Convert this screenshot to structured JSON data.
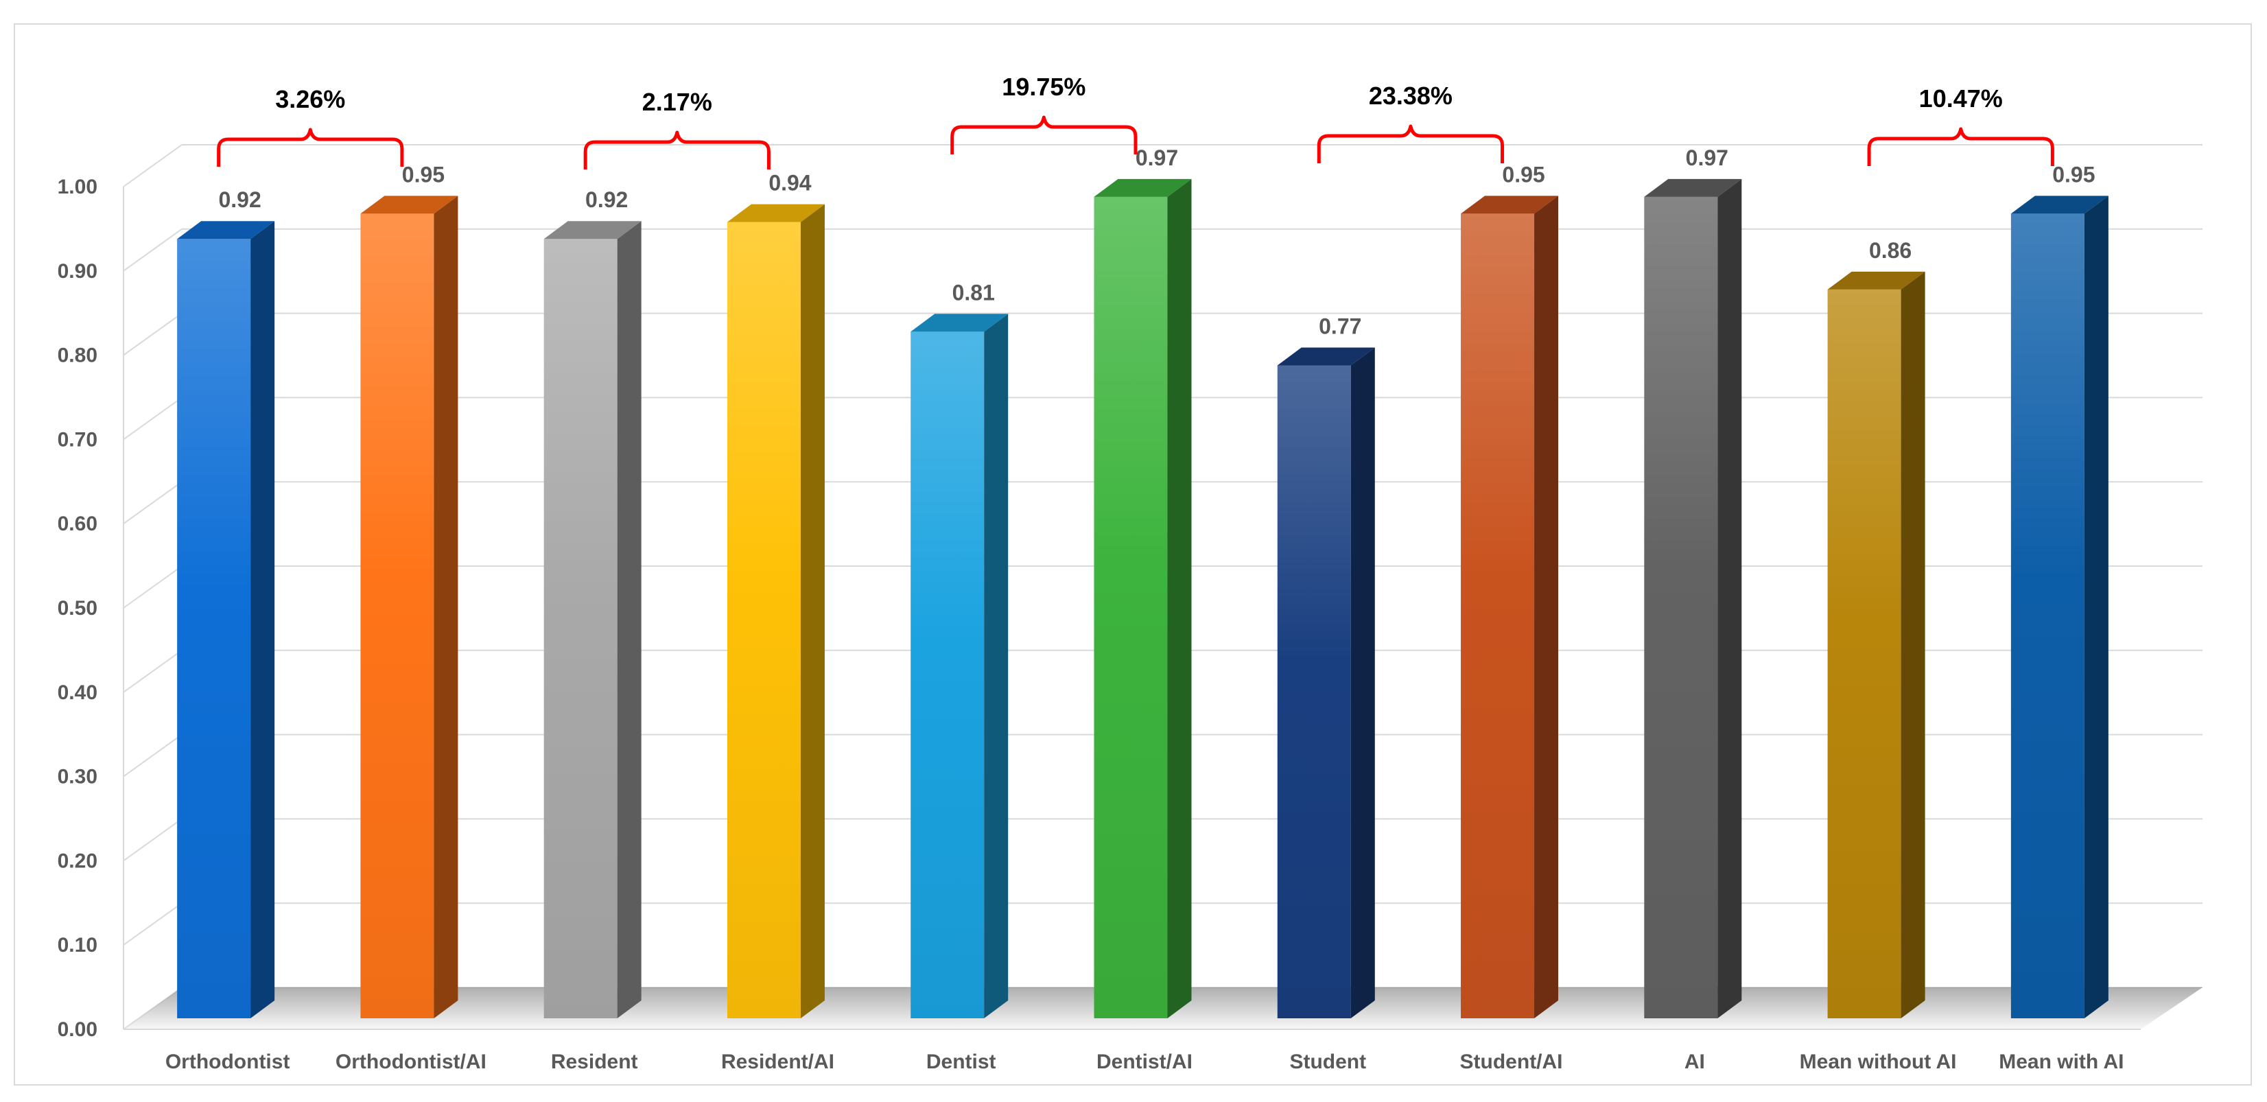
{
  "chart_data": {
    "type": "bar",
    "title": "",
    "xlabel": "",
    "ylabel": "",
    "ylim": [
      0,
      1.0
    ],
    "yticks": [
      "0.00",
      "0.10",
      "0.20",
      "0.30",
      "0.40",
      "0.50",
      "0.60",
      "0.70",
      "0.80",
      "0.90",
      "1.00"
    ],
    "grid": true,
    "legend": "none",
    "categories": [
      "Orthodontist",
      "Orthodontist/AI",
      "Resident",
      "Resident/AI",
      "Dentist",
      "Dentist/AI",
      "Student",
      "Student/AI",
      "AI",
      "Mean without AI",
      "Mean with AI"
    ],
    "values": [
      0.92,
      0.95,
      0.92,
      0.94,
      0.81,
      0.97,
      0.77,
      0.95,
      0.97,
      0.86,
      0.95
    ],
    "value_labels": [
      "0.92",
      "0.95",
      "0.92",
      "0.94",
      "0.81",
      "0.97",
      "0.77",
      "0.95",
      "0.97",
      "0.86",
      "0.95"
    ],
    "colors": [
      "#0f6fd6",
      "#ff7418",
      "#a9a9a9",
      "#ffc107",
      "#1ba3e0",
      "#3db43d",
      "#1a3f80",
      "#c9531f",
      "#636363",
      "#b8860b",
      "#0d5ea8"
    ],
    "annotations": [
      {
        "from": 0,
        "to": 1,
        "label": "3.26%",
        "value": 0.95,
        "color": "#ff0000"
      },
      {
        "from": 2,
        "to": 3,
        "label": "2.17%",
        "value": 0.94,
        "color": "#ff0000"
      },
      {
        "from": 4,
        "to": 5,
        "label": "19.75%",
        "value": 0.97,
        "color": "#ff0000"
      },
      {
        "from": 6,
        "to": 7,
        "label": "23.38%",
        "value": 0.95,
        "color": "#ff0000"
      },
      {
        "from": 9,
        "to": 10,
        "label": "10.47%",
        "value": 0.95,
        "color": "#ff0000"
      }
    ]
  }
}
